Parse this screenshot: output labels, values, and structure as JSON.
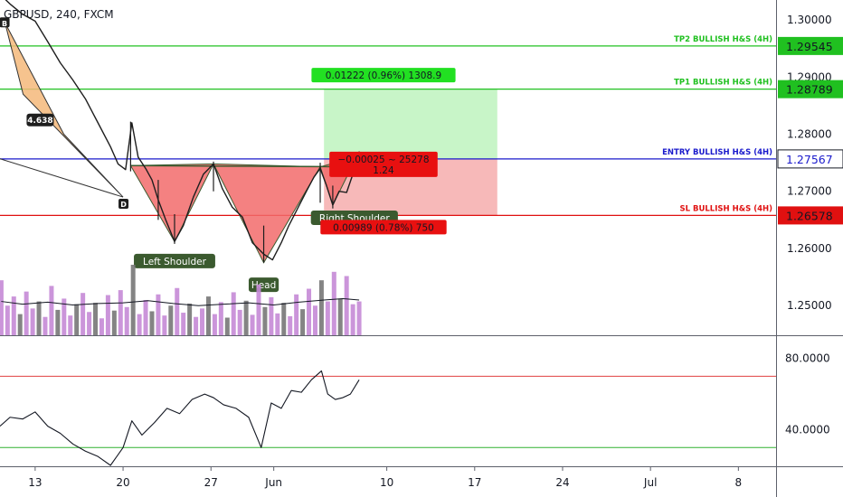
{
  "header": {
    "symbol": "GBPUSD, 240, FXCM"
  },
  "colors": {
    "tp": "#20c020",
    "entry": "#1a1acc",
    "sl": "#e01010",
    "pattern_fill": "#f26b6b",
    "harmonic_fill": "#f5b97a",
    "volume": "#c58ad6",
    "volume_dark": "#777777",
    "rsi_line": "#131722",
    "rsi_upper": "#e04040",
    "rsi_lower": "#30b030",
    "profit_zone": "#c8f5c8",
    "loss_zone": "#f7b9b9"
  },
  "chart_data": [
    {
      "type": "line",
      "role": "price",
      "ylim": [
        1.2448,
        1.3035
      ],
      "yticks": [
        "1.30000",
        "1.29000",
        "1.28000",
        "1.27000",
        "1.26000",
        "1.25000"
      ],
      "ytick_values": [
        1.3,
        1.29,
        1.28,
        1.27,
        1.26,
        1.25
      ],
      "xticks": [
        "13",
        "20",
        "27",
        "Jun",
        "10",
        "17",
        "24",
        "Jul",
        "8"
      ],
      "xtick_days": [
        13,
        20,
        27,
        32,
        41,
        48,
        55,
        62,
        69
      ],
      "x_range_days": [
        10.2,
        72.0
      ],
      "price_path": [
        [
          10.2,
          1.3045
        ],
        [
          11.0,
          1.3028
        ],
        [
          12.0,
          1.301
        ],
        [
          13.0,
          1.2998
        ],
        [
          14.0,
          1.2962
        ],
        [
          15.0,
          1.2925
        ],
        [
          16.0,
          1.2895
        ],
        [
          17.0,
          1.2862
        ],
        [
          18.0,
          1.282
        ],
        [
          19.0,
          1.2778
        ],
        [
          19.6,
          1.2748
        ],
        [
          20.2,
          1.2738
        ],
        [
          20.7,
          1.282
        ],
        [
          21.2,
          1.276
        ],
        [
          21.8,
          1.274
        ],
        [
          22.3,
          1.272
        ],
        [
          22.8,
          1.2685
        ],
        [
          23.4,
          1.265
        ],
        [
          24.1,
          1.2612
        ],
        [
          24.8,
          1.264
        ],
        [
          25.6,
          1.269
        ],
        [
          26.4,
          1.273
        ],
        [
          27.2,
          1.2748
        ],
        [
          27.9,
          1.2705
        ],
        [
          28.7,
          1.2672
        ],
        [
          29.5,
          1.2655
        ],
        [
          30.3,
          1.261
        ],
        [
          31.2,
          1.259
        ],
        [
          31.9,
          1.258
        ],
        [
          32.6,
          1.261
        ],
        [
          33.2,
          1.264
        ],
        [
          33.9,
          1.267
        ],
        [
          34.6,
          1.27
        ],
        [
          35.2,
          1.2725
        ],
        [
          35.7,
          1.274
        ],
        [
          36.2,
          1.271
        ],
        [
          36.7,
          1.2676
        ],
        [
          37.2,
          1.27
        ],
        [
          37.8,
          1.2698
        ],
        [
          38.3,
          1.273
        ],
        [
          38.8,
          1.2765
        ]
      ],
      "yrange_bars": [
        [
          20.6,
          1.2735,
          1.2822
        ],
        [
          22.8,
          1.265,
          1.272
        ],
        [
          24.1,
          1.2608,
          1.266
        ],
        [
          27.2,
          1.27,
          1.2752
        ],
        [
          31.2,
          1.2575,
          1.264
        ],
        [
          35.7,
          1.268,
          1.275
        ],
        [
          36.7,
          1.267,
          1.271
        ],
        [
          38.8,
          1.274,
          1.277
        ]
      ],
      "head_and_shoulders": {
        "points": [
          [
            20.6,
            1.2745
          ],
          [
            24.1,
            1.2612
          ],
          [
            27.2,
            1.2748
          ],
          [
            31.2,
            1.2575
          ],
          [
            35.7,
            1.2743
          ],
          [
            36.7,
            1.2676
          ],
          [
            38.6,
            1.276
          ]
        ],
        "labels": [
          "Left Shoulder",
          "Head",
          "Right Shoulder"
        ]
      },
      "harmonic_pattern": {
        "points": [
          [
            10.6,
            1.2995
          ],
          [
            20.0,
            1.269
          ]
        ],
        "x_leg": [
          [
            10.2,
            1.2757
          ],
          [
            20.0,
            1.269
          ]
        ],
        "labels": [
          "B",
          "D"
        ],
        "ratio": "4.638"
      },
      "levels": [
        {
          "name": "TP2 BULLISH H&S (4H)",
          "value": 1.29545,
          "label": "1.29545",
          "color_key": "tp"
        },
        {
          "name": "TP1 BULLISH H&S (4H)",
          "value": 1.28789,
          "label": "1.28789",
          "color_key": "tp"
        },
        {
          "name": "ENTRY BULLISH H&S (4H)",
          "value": 1.27567,
          "label": "1.27567",
          "color_key": "entry"
        },
        {
          "name": "SL BULLISH H&S (4H)",
          "value": 1.26578,
          "label": "1.26578",
          "color_key": "sl"
        }
      ],
      "position": {
        "x_start_day": 36.0,
        "x_end_day": 49.8,
        "target": 1.28789,
        "entry": 1.27567,
        "stop": 1.26578,
        "target_label": "0.01222 (0.96%) 1308.9",
        "entry_label_line1": "−0.00025 ~ 25278",
        "entry_label_line2": "1.24",
        "stop_label": "0.00989 (0.78%) 750"
      },
      "volume": {
        "max": 100,
        "bars": [
          [
            10.3,
            78,
            "p"
          ],
          [
            10.8,
            42,
            "p"
          ],
          [
            11.3,
            55,
            "p"
          ],
          [
            11.8,
            30,
            "d"
          ],
          [
            12.3,
            62,
            "p"
          ],
          [
            12.8,
            38,
            "p"
          ],
          [
            13.3,
            48,
            "d"
          ],
          [
            13.8,
            26,
            "p"
          ],
          [
            14.3,
            70,
            "p"
          ],
          [
            14.8,
            36,
            "d"
          ],
          [
            15.3,
            52,
            "p"
          ],
          [
            15.8,
            28,
            "p"
          ],
          [
            16.3,
            44,
            "d"
          ],
          [
            16.8,
            60,
            "p"
          ],
          [
            17.3,
            33,
            "p"
          ],
          [
            17.8,
            46,
            "d"
          ],
          [
            18.3,
            24,
            "p"
          ],
          [
            18.8,
            57,
            "p"
          ],
          [
            19.3,
            35,
            "d"
          ],
          [
            19.8,
            64,
            "p"
          ],
          [
            20.3,
            40,
            "p"
          ],
          [
            20.8,
            100,
            "d"
          ],
          [
            21.3,
            30,
            "p"
          ],
          [
            21.8,
            50,
            "p"
          ],
          [
            22.3,
            34,
            "d"
          ],
          [
            22.8,
            58,
            "p"
          ],
          [
            23.3,
            28,
            "p"
          ],
          [
            23.8,
            42,
            "d"
          ],
          [
            24.3,
            67,
            "p"
          ],
          [
            24.8,
            32,
            "p"
          ],
          [
            25.3,
            45,
            "d"
          ],
          [
            25.8,
            26,
            "p"
          ],
          [
            26.3,
            38,
            "p"
          ],
          [
            26.8,
            55,
            "d"
          ],
          [
            27.3,
            30,
            "p"
          ],
          [
            27.8,
            47,
            "p"
          ],
          [
            28.3,
            25,
            "d"
          ],
          [
            28.8,
            61,
            "p"
          ],
          [
            29.3,
            36,
            "p"
          ],
          [
            29.8,
            49,
            "d"
          ],
          [
            30.3,
            29,
            "p"
          ],
          [
            30.8,
            72,
            "p"
          ],
          [
            31.3,
            40,
            "d"
          ],
          [
            31.8,
            54,
            "p"
          ],
          [
            32.3,
            31,
            "p"
          ],
          [
            32.8,
            46,
            "d"
          ],
          [
            33.3,
            27,
            "p"
          ],
          [
            33.8,
            58,
            "p"
          ],
          [
            34.3,
            37,
            "d"
          ],
          [
            34.8,
            66,
            "p"
          ],
          [
            35.3,
            42,
            "p"
          ],
          [
            35.8,
            78,
            "d"
          ],
          [
            36.3,
            48,
            "p"
          ],
          [
            36.8,
            90,
            "p"
          ],
          [
            37.3,
            52,
            "d"
          ],
          [
            37.8,
            84,
            "p"
          ],
          [
            38.3,
            44,
            "p"
          ],
          [
            38.8,
            48,
            "p"
          ]
        ],
        "ma": [
          [
            10.3,
            48
          ],
          [
            12.0,
            44
          ],
          [
            14.0,
            47
          ],
          [
            16.0,
            43
          ],
          [
            18.0,
            45
          ],
          [
            20.0,
            46
          ],
          [
            22.0,
            49
          ],
          [
            24.0,
            45
          ],
          [
            26.0,
            42
          ],
          [
            28.0,
            44
          ],
          [
            30.0,
            46
          ],
          [
            32.0,
            43
          ],
          [
            34.0,
            47
          ],
          [
            36.0,
            50
          ],
          [
            37.5,
            52
          ],
          [
            38.8,
            50
          ]
        ]
      }
    },
    {
      "type": "line",
      "role": "oscillator",
      "ylim": [
        20,
        92
      ],
      "yticks": [
        "80.0000",
        "40.0000"
      ],
      "ytick_values": [
        80,
        40
      ],
      "upper_level": 70,
      "lower_level": 30,
      "series": [
        {
          "values": [
            [
              10.2,
              42
            ],
            [
              11.0,
              47
            ],
            [
              12.0,
              46
            ],
            [
              13.0,
              50
            ],
            [
              14.0,
              42
            ],
            [
              15.0,
              38
            ],
            [
              16.0,
              32
            ],
            [
              17.0,
              28
            ],
            [
              18.0,
              25
            ],
            [
              19.0,
              20
            ],
            [
              20.0,
              30
            ],
            [
              20.7,
              45
            ],
            [
              21.5,
              37
            ],
            [
              22.5,
              44
            ],
            [
              23.5,
              52
            ],
            [
              24.5,
              49
            ],
            [
              25.5,
              57
            ],
            [
              26.5,
              60
            ],
            [
              27.2,
              58
            ],
            [
              28.0,
              54
            ],
            [
              29.0,
              52
            ],
            [
              30.0,
              47
            ],
            [
              31.0,
              30
            ],
            [
              31.8,
              55
            ],
            [
              32.6,
              52
            ],
            [
              33.4,
              62
            ],
            [
              34.2,
              61
            ],
            [
              35.0,
              68
            ],
            [
              35.8,
              73
            ],
            [
              36.3,
              60
            ],
            [
              36.9,
              57
            ],
            [
              37.5,
              58
            ],
            [
              38.1,
              60
            ],
            [
              38.8,
              68
            ]
          ]
        }
      ]
    }
  ]
}
